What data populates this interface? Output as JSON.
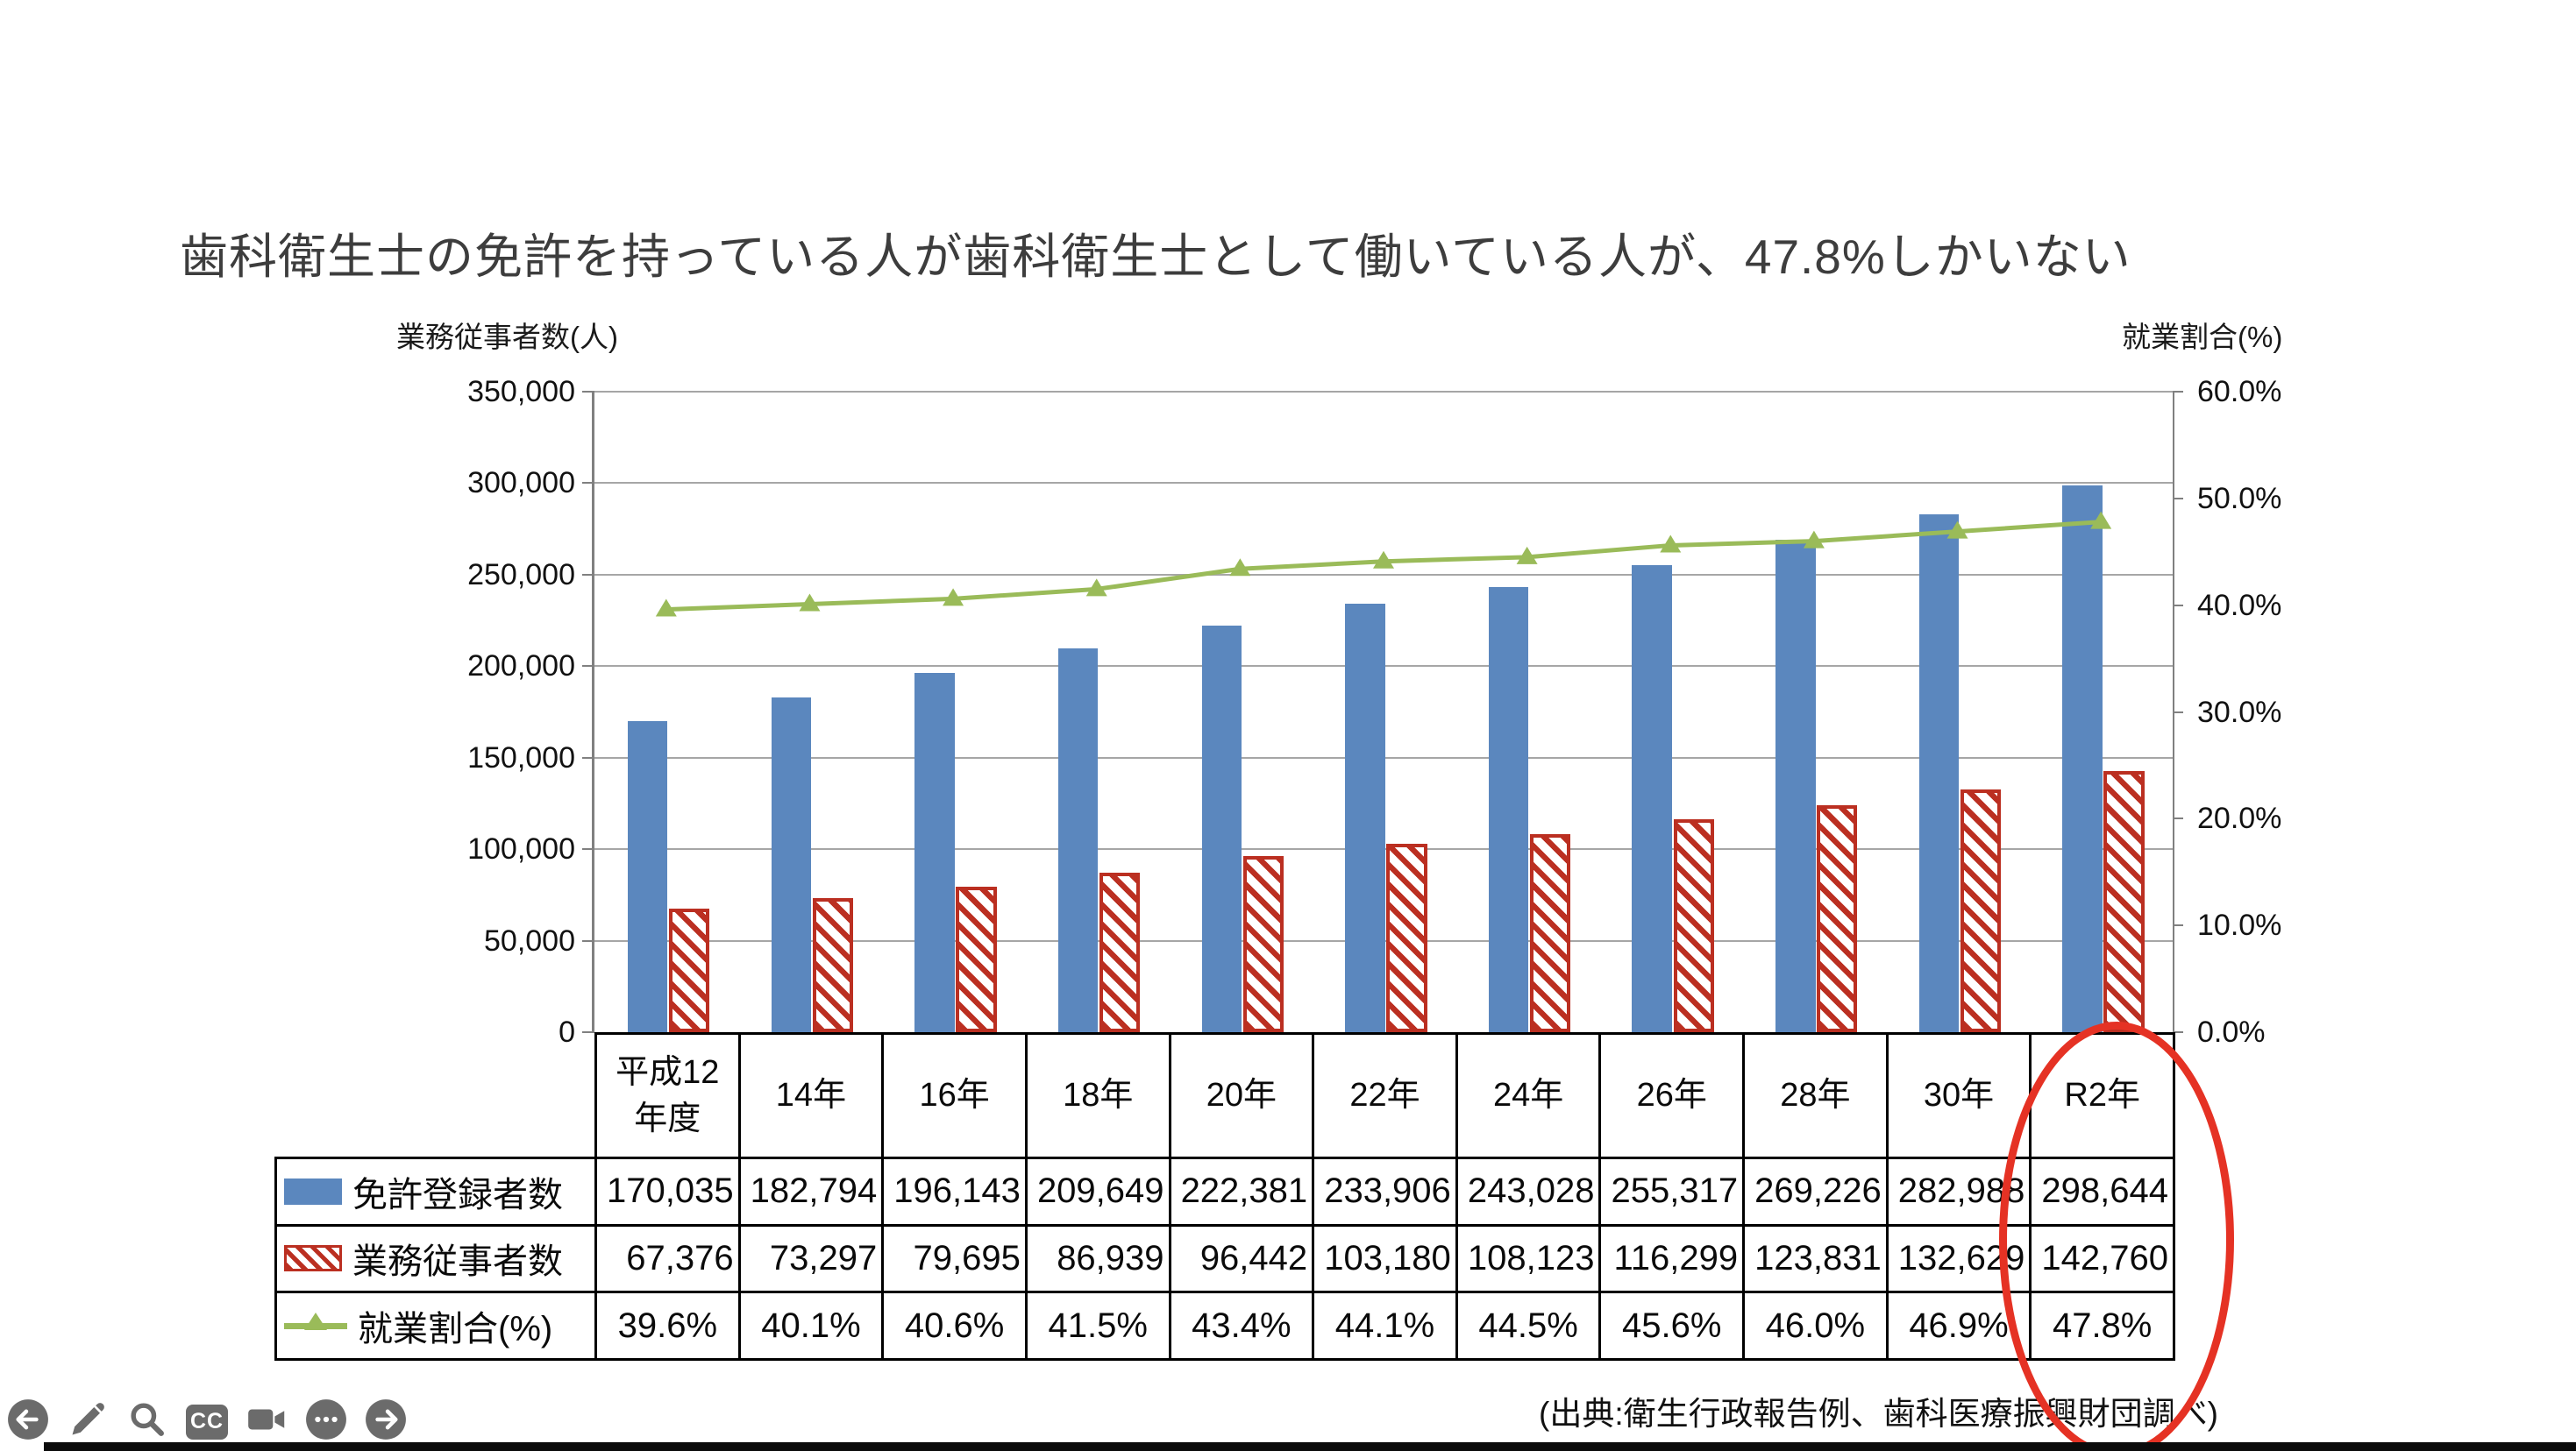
{
  "title": "歯科衛生士の免許を持っている人が歯科衛生士として働いている人が、47.8%しかいない",
  "source_note": "(出典:衛生行政報告例、歯科医療振興財団調べ)",
  "axes": {
    "left_title": "業務従事者数(人)",
    "right_title": "就業割合(%)",
    "left_ticks": [
      "350,000",
      "300,000",
      "250,000",
      "200,000",
      "150,000",
      "100,000",
      "50,000",
      "0"
    ],
    "right_ticks": [
      "60.0%",
      "50.0%",
      "40.0%",
      "30.0%",
      "20.0%",
      "10.0%",
      "0.0%"
    ]
  },
  "chart_data": {
    "type": "bar",
    "categories": [
      "平成12\n年度",
      "14年",
      "16年",
      "18年",
      "20年",
      "22年",
      "24年",
      "26年",
      "28年",
      "30年",
      "R2年"
    ],
    "series": [
      {
        "name": "免許登録者数",
        "type": "bar",
        "color": "#5b87be",
        "axis": "left",
        "values": [
          170035,
          182794,
          196143,
          209649,
          222381,
          233906,
          243028,
          255317,
          269226,
          282988,
          298644
        ]
      },
      {
        "name": "業務従事者数",
        "type": "bar",
        "style": "diagonal-hatch",
        "color": "#bb2f21",
        "axis": "left",
        "values": [
          67376,
          73297,
          79695,
          86939,
          96442,
          103180,
          108123,
          116299,
          123831,
          132629,
          142760
        ]
      },
      {
        "name": "就業割合(%)",
        "type": "line",
        "marker": "triangle-up",
        "color": "#9abb59",
        "axis": "right",
        "values": [
          39.6,
          40.1,
          40.6,
          41.5,
          43.4,
          44.1,
          44.5,
          45.6,
          46.0,
          46.9,
          47.8
        ]
      }
    ],
    "left_axis": {
      "min": 0,
      "max": 350000,
      "step": 50000
    },
    "right_axis": {
      "min": 0,
      "max": 60,
      "step": 10,
      "unit": "%"
    },
    "grid": true,
    "legend_position": "table-left-column"
  },
  "table": {
    "columns": [
      "平成12\n年度",
      "14年",
      "16年",
      "18年",
      "20年",
      "22年",
      "24年",
      "26年",
      "28年",
      "30年",
      "R2年"
    ],
    "rows": [
      {
        "label": "免許登録者数",
        "swatch": "bar-blue",
        "align": "right",
        "values": [
          "170,035",
          "182,794",
          "196,143",
          "209,649",
          "222,381",
          "233,906",
          "243,028",
          "255,317",
          "269,226",
          "282,988",
          "298,644"
        ]
      },
      {
        "label": "業務従事者数",
        "swatch": "bar-hatched",
        "align": "right",
        "values": [
          "67,376",
          "73,297",
          "79,695",
          "86,939",
          "96,442",
          "103,180",
          "108,123",
          "116,299",
          "123,831",
          "132,629",
          "142,760"
        ]
      },
      {
        "label": "就業割合(%)",
        "swatch": "line-marker",
        "align": "center",
        "values": [
          "39.6%",
          "40.1%",
          "40.6%",
          "41.5%",
          "43.4%",
          "44.1%",
          "44.5%",
          "45.6%",
          "46.0%",
          "46.9%",
          "47.8%"
        ]
      }
    ]
  },
  "annotation": {
    "shape": "ellipse",
    "color": "#e53224",
    "highlighted_column": "R2年"
  },
  "toolbar": {
    "cc_label": "CC",
    "icons": [
      "back-arrow",
      "pencil",
      "magnifier",
      "closed-captions",
      "video-camera",
      "more-options",
      "forward-arrow"
    ]
  },
  "colors": {
    "bar_blue": "#5b87be",
    "bar_red": "#bb2f21",
    "line_green": "#9abb59",
    "grid": "#a6a6a6",
    "axis": "#808080",
    "table_border": "#000000",
    "title_text": "#3d3d3d",
    "icon_gray": "#6b6b6b",
    "ellipse_red": "#e53224"
  }
}
